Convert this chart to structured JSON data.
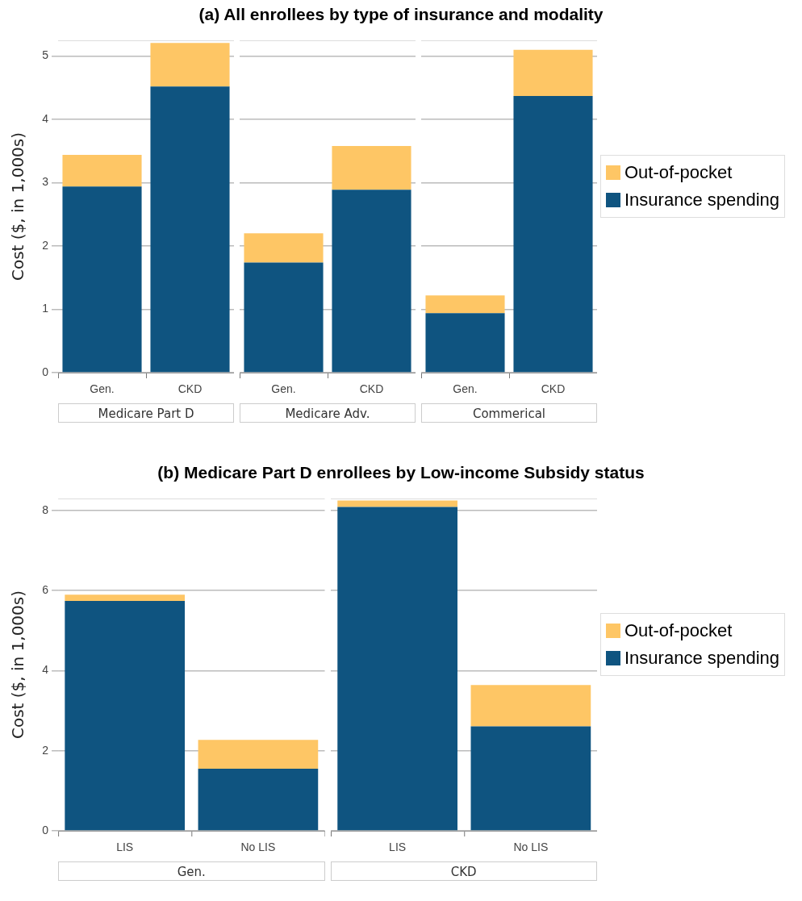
{
  "chart_data": [
    {
      "type": "bar",
      "ylabel": "Cost ($, in 1,000s)",
      "xlabel": "Medicare Part D",
      "categories": [
        "Gen.",
        "CKD"
      ],
      "stacked": true,
      "ylim": [
        0,
        5.25
      ],
      "yticks": [
        0,
        1,
        2,
        3,
        4,
        5
      ],
      "grid": "y",
      "legend": false,
      "series": [
        {
          "color": "#0f5480",
          "values": [
            2.94,
            4.52
          ]
        },
        {
          "color": "#fec665",
          "values": [
            0.5,
            0.69
          ]
        }
      ]
    },
    {
      "type": "bar",
      "title": "(a)    All enrollees by type of insurance and modality",
      "xlabel": "Medicare Adv.",
      "categories": [
        "Gen.",
        "CKD"
      ],
      "stacked": true,
      "ylim": [
        0,
        5.25
      ],
      "yticks": [
        0,
        1,
        2,
        3,
        4,
        5
      ],
      "grid": "y",
      "legend": false,
      "tick_labels": "x",
      "series": [
        {
          "color": "#0f5480",
          "values": [
            1.74,
            2.89
          ]
        },
        {
          "color": "#fec665",
          "values": [
            0.46,
            0.69
          ]
        }
      ]
    },
    {
      "type": "bar",
      "xlabel": "Commerical",
      "categories": [
        "Gen.",
        "CKD"
      ],
      "stacked": true,
      "ylim": [
        0,
        5.25
      ],
      "yticks": [
        0,
        1,
        2,
        3,
        4,
        5
      ],
      "grid": "y",
      "legend": "right",
      "tick_labels": "x",
      "series": [
        {
          "name": "Insurance spending",
          "color": "#0f5480",
          "values": [
            0.94,
            4.37
          ]
        },
        {
          "name": "Out-of-pocket",
          "color": "#fec665",
          "values": [
            0.28,
            0.73
          ]
        }
      ]
    },
    {
      "type": "bar",
      "title": "(b)    Medicare Part D enrollees by Low-income Subsidy status",
      "ylabel": "Cost ($, in 1,000s)",
      "xlabel": "Gen.",
      "categories": [
        "LIS",
        "No LIS"
      ],
      "stacked": true,
      "ylim": [
        0,
        8.3
      ],
      "yticks": [
        0,
        2,
        4,
        6,
        8
      ],
      "grid": "y",
      "legend": false,
      "series": [
        {
          "color": "#0f5480",
          "values": [
            5.74,
            1.55
          ]
        },
        {
          "color": "#fec665",
          "values": [
            0.16,
            0.72
          ]
        }
      ]
    },
    {
      "type": "bar",
      "xlabel": "CKD",
      "categories": [
        "LIS",
        "No LIS"
      ],
      "stacked": true,
      "ylim": [
        0,
        8.3
      ],
      "yticks": [
        0,
        2,
        4,
        6,
        8
      ],
      "grid": "y",
      "legend": "right",
      "tick_labels": "x",
      "series": [
        {
          "name": "Insurance spending",
          "color": "#0f5480",
          "values": [
            8.09,
            2.61
          ]
        },
        {
          "name": "Out-of-pocket",
          "color": "#fec665",
          "values": [
            0.16,
            1.03
          ]
        }
      ]
    }
  ]
}
